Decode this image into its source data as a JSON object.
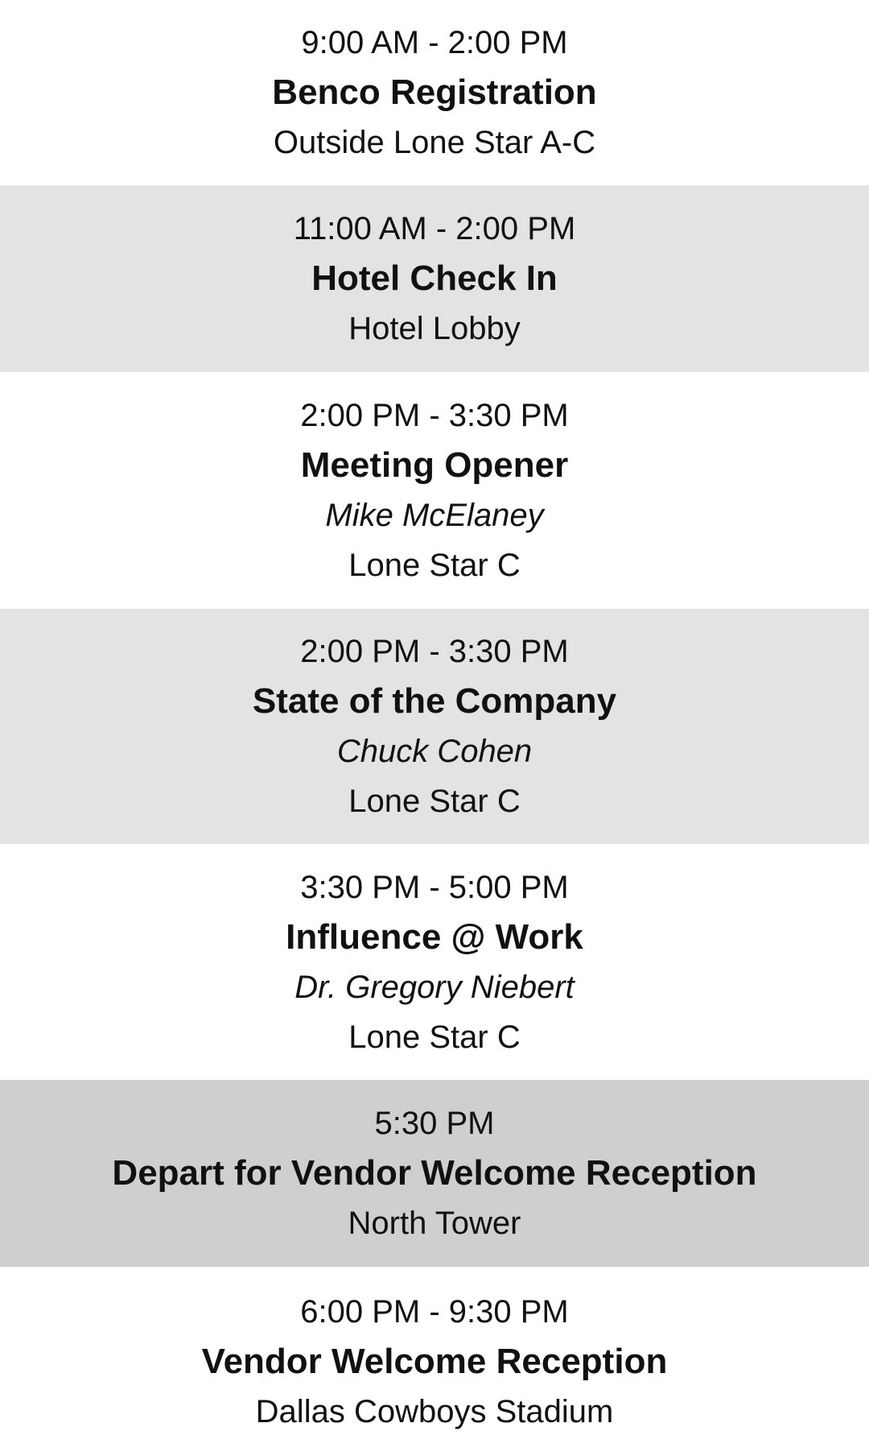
{
  "sessions": [
    {
      "time": "9:00 AM - 2:00 PM",
      "title": "Benco Registration",
      "location": "Outside Lone Star A-C"
    },
    {
      "time": "11:00 AM - 2:00 PM",
      "title": "Hotel Check In",
      "location": "Hotel Lobby"
    },
    {
      "time": "2:00 PM - 3:30 PM",
      "title": "Meeting Opener",
      "speaker": "Mike McElaney",
      "location": "Lone Star C"
    },
    {
      "time": "2:00 PM - 3:30 PM",
      "title": "State of the Company",
      "speaker": "Chuck Cohen",
      "location": "Lone Star C"
    },
    {
      "time": "3:30 PM - 5:00 PM",
      "title": "Influence @ Work",
      "speaker": "Dr. Gregory Niebert",
      "location": "Lone Star C"
    },
    {
      "time": "5:30 PM",
      "title": "Depart for Vendor Welcome Reception",
      "location": "North Tower"
    },
    {
      "time": "6:00 PM - 9:30 PM",
      "title": "Vendor Welcome Reception",
      "location": "Dallas Cowboys Stadium"
    }
  ]
}
